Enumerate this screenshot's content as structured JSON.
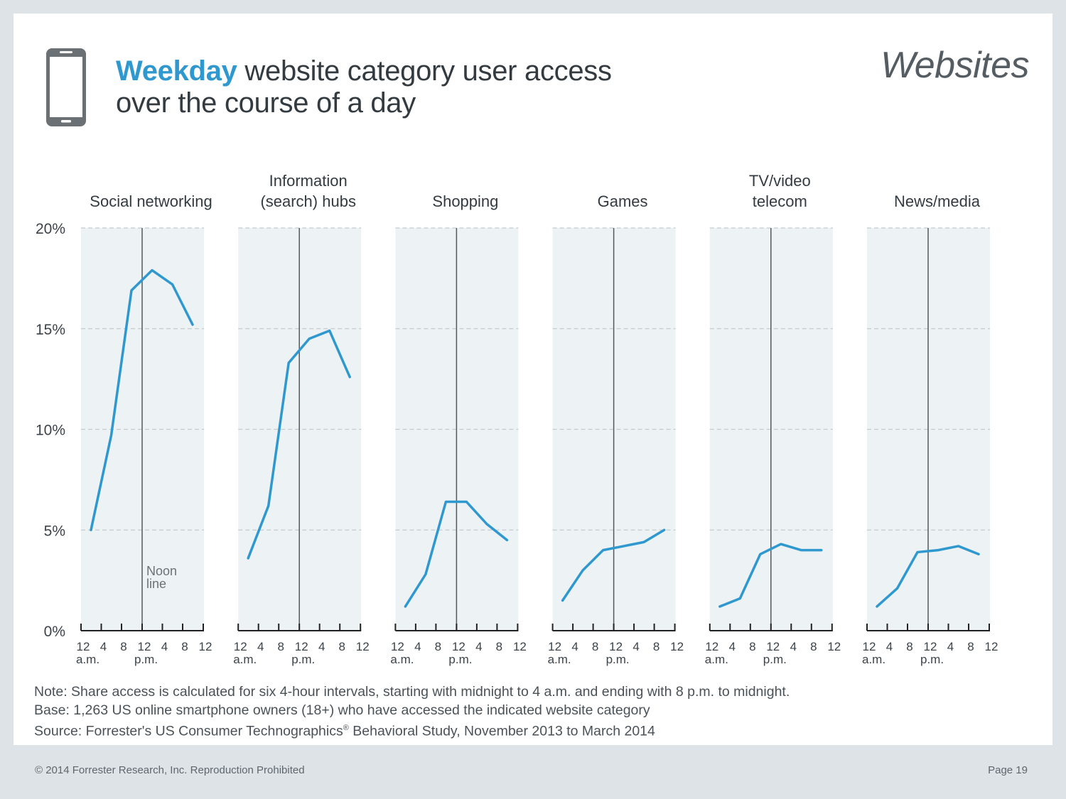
{
  "header": {
    "title_highlight": "Weekday",
    "title_rest_line1": " website category user access",
    "title_line2": "over the course of a day",
    "section_label": "Websites"
  },
  "chart_data": {
    "type": "line",
    "title": "Weekday website category user access over the course of a day",
    "ylim": [
      0,
      20
    ],
    "y_ticks": [
      0,
      5,
      10,
      15,
      20
    ],
    "y_tick_labels": [
      "0%",
      "5%",
      "10%",
      "15%",
      "20%"
    ],
    "x_tick_labels": [
      "12",
      "4",
      "8",
      "12",
      "4",
      "8",
      "12"
    ],
    "x_sub_labels": [
      "a.m.",
      "p.m."
    ],
    "annotation": [
      "Noon",
      "line"
    ],
    "colors": {
      "line": "#2f98cf",
      "panel": "#edf2f5",
      "noon": "#55595d",
      "grid": "#c5cacd"
    },
    "panels": [
      {
        "name": "social-networking",
        "label": [
          "Social networking"
        ],
        "values": [
          5.0,
          9.7,
          16.9,
          17.9,
          17.2,
          15.2
        ]
      },
      {
        "name": "information-hubs",
        "label": [
          "Information",
          "(search) hubs"
        ],
        "values": [
          3.6,
          6.2,
          13.3,
          14.5,
          14.9,
          12.6
        ]
      },
      {
        "name": "shopping",
        "label": [
          "Shopping"
        ],
        "values": [
          1.2,
          2.8,
          6.4,
          6.4,
          5.3,
          4.5
        ]
      },
      {
        "name": "games",
        "label": [
          "Games"
        ],
        "values": [
          1.5,
          3.0,
          4.0,
          4.2,
          4.4,
          5.0
        ]
      },
      {
        "name": "tv-video-telecom",
        "label": [
          "TV/video",
          "telecom"
        ],
        "values": [
          1.2,
          1.6,
          3.8,
          4.3,
          4.0,
          4.0
        ]
      },
      {
        "name": "news-media",
        "label": [
          "News/media"
        ],
        "values": [
          1.2,
          2.1,
          3.9,
          4.0,
          4.2,
          3.8
        ]
      }
    ]
  },
  "notes": {
    "note": "Note: Share access is calculated for six 4-hour intervals, starting with midnight to 4 a.m. and ending with 8 p.m. to midnight.",
    "base": "Base: 1,263 US online smartphone owners (18+) who have accessed the indicated website category",
    "source_prefix": "Source: Forrester's US Consumer Technographics",
    "source_reg": "®",
    "source_suffix": " Behavioral Study, November 2013 to March 2014"
  },
  "footer": {
    "copyright": "© 2014 Forrester Research, Inc. Reproduction Prohibited",
    "page": "Page 19"
  }
}
